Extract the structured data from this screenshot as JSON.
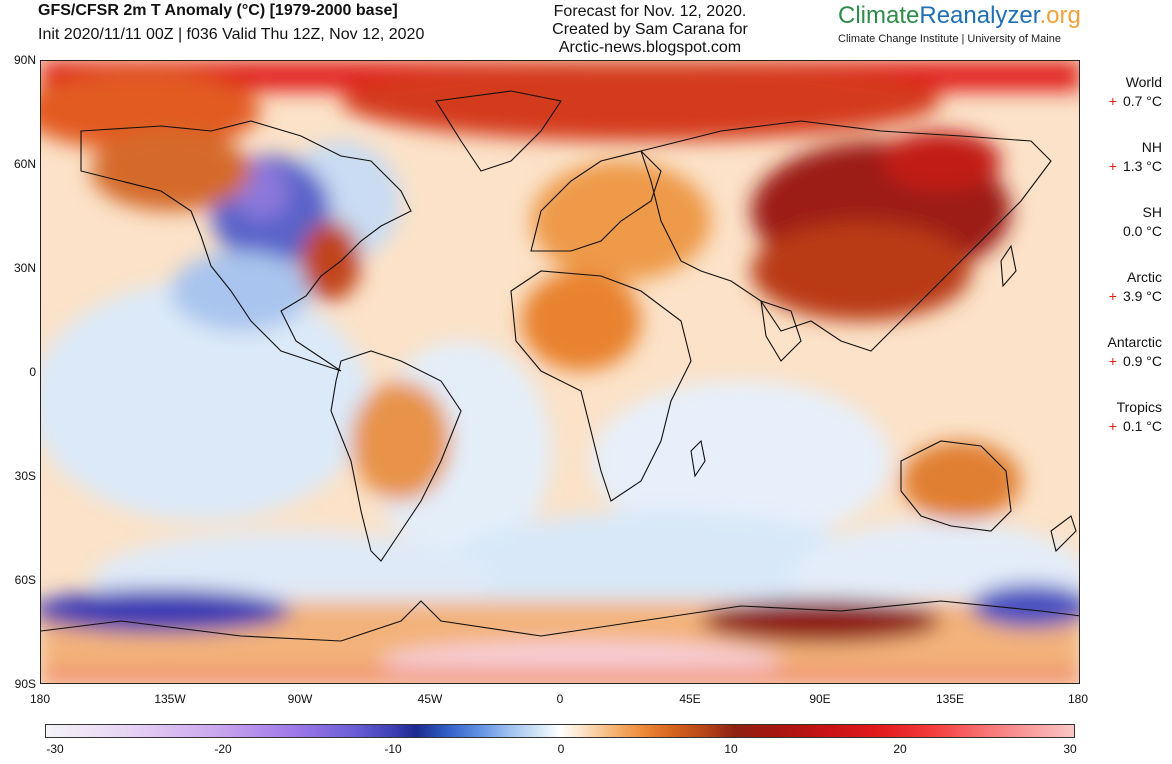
{
  "header": {
    "title": "GFS/CFSR 2m T Anomaly (°C) [1979-2000 base]",
    "subtitle": "Init 2020/11/11 00Z | f036 Valid Thu 12Z, Nov 12, 2020"
  },
  "credit": {
    "line1": "Forecast for Nov. 12, 2020.",
    "line2": "Created by Sam Carana for",
    "line3": "Arctic-news.blogspot.com"
  },
  "brand": {
    "part1": "Climate",
    "part2": "Reanalyzer",
    "part3": ".org",
    "subtitle": "Climate Change Institute | University of Maine",
    "colors": {
      "part1": "#2e8b4a",
      "part2": "#1f6fb5",
      "part3": "#f0a23a"
    }
  },
  "axes": {
    "lat_labels": [
      "90N",
      "60N",
      "30N",
      "0",
      "30S",
      "60S",
      "90S"
    ],
    "lon_labels": [
      "180",
      "135W",
      "90W",
      "45W",
      "0",
      "45E",
      "90E",
      "135E",
      "180"
    ]
  },
  "stats": [
    {
      "name": "World",
      "sign": "+",
      "value": "0.7 °C"
    },
    {
      "name": "NH",
      "sign": "+",
      "value": "1.3 °C"
    },
    {
      "name": "SH",
      "sign": "",
      "value": "0.0 °C"
    },
    {
      "name": "Arctic",
      "sign": "+",
      "value": "3.9 °C"
    },
    {
      "name": "Antarctic",
      "sign": "+",
      "value": "0.9 °C"
    },
    {
      "name": "Tropics",
      "sign": "+",
      "value": "0.1 °C"
    }
  ],
  "colorbar": {
    "ticks": [
      "-30",
      "-20",
      "-10",
      "0",
      "10",
      "20",
      "30"
    ],
    "range": [
      -30,
      30
    ]
  }
}
